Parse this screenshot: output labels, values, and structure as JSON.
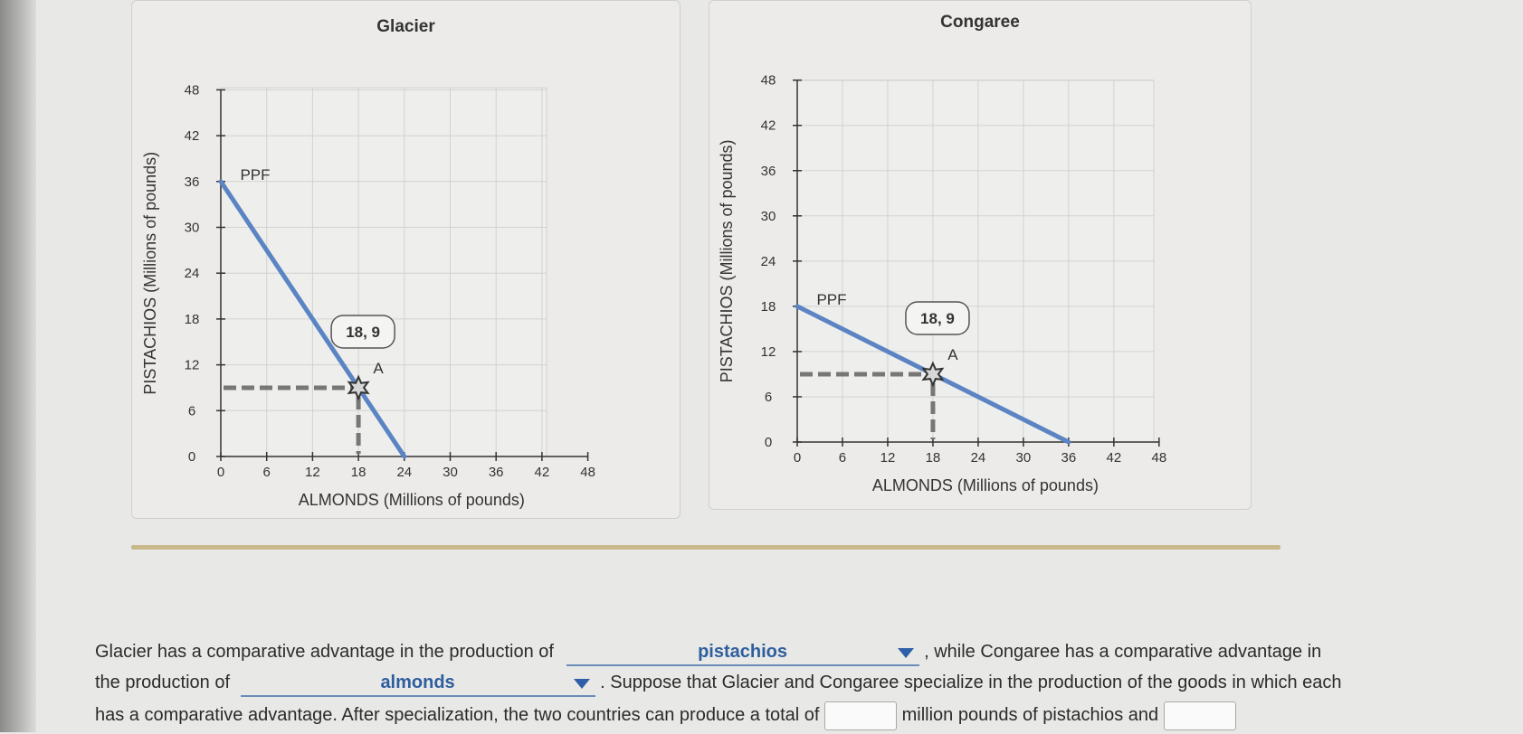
{
  "chart_data": [
    {
      "type": "line",
      "title": "Glacier",
      "xlabel": "ALMONDS (Millions of pounds)",
      "ylabel": "PISTACHIOS (Millions of pounds)",
      "xlim": [
        0,
        48
      ],
      "ylim": [
        0,
        48
      ],
      "xticks": [
        "0",
        "6",
        "12",
        "18",
        "24",
        "30",
        "36",
        "42",
        "48"
      ],
      "yticks": [
        "0",
        "6",
        "12",
        "18",
        "24",
        "30",
        "36",
        "42",
        "48"
      ],
      "grid": true,
      "series": [
        {
          "name": "PPF",
          "color": "#5b84c4",
          "points": [
            [
              0,
              36
            ],
            [
              24,
              0
            ]
          ]
        }
      ],
      "point": {
        "label": "A",
        "callout": "18, 9",
        "x": 18,
        "y": 9
      }
    },
    {
      "type": "line",
      "title": "Congaree",
      "xlabel": "ALMONDS (Millions of pounds)",
      "ylabel": "PISTACHIOS (Millions of pounds)",
      "xlim": [
        0,
        48
      ],
      "ylim": [
        0,
        48
      ],
      "xticks": [
        "0",
        "6",
        "12",
        "18",
        "24",
        "30",
        "36",
        "42",
        "48"
      ],
      "yticks": [
        "0",
        "6",
        "12",
        "18",
        "24",
        "30",
        "36",
        "42",
        "48"
      ],
      "grid": true,
      "series": [
        {
          "name": "PPF",
          "color": "#5b84c4",
          "points": [
            [
              0,
              18
            ],
            [
              36,
              0
            ]
          ]
        }
      ],
      "point": {
        "label": "A",
        "callout": "18, 9",
        "x": 18,
        "y": 9
      }
    }
  ],
  "question": {
    "line1_a": "Glacier has a comparative advantage in the production of",
    "dropdown1_value": "pistachios",
    "line1_b": ", while Congaree has a comparative advantage in",
    "line2_a": "the production of",
    "dropdown2_value": "almonds",
    "line2_b": ". Suppose that Glacier and Congaree specialize in the production of the goods in which each",
    "line3_a": "has a comparative advantage. After specialization, the two countries can produce a total of",
    "line3_b": "million pounds of pistachios and"
  }
}
